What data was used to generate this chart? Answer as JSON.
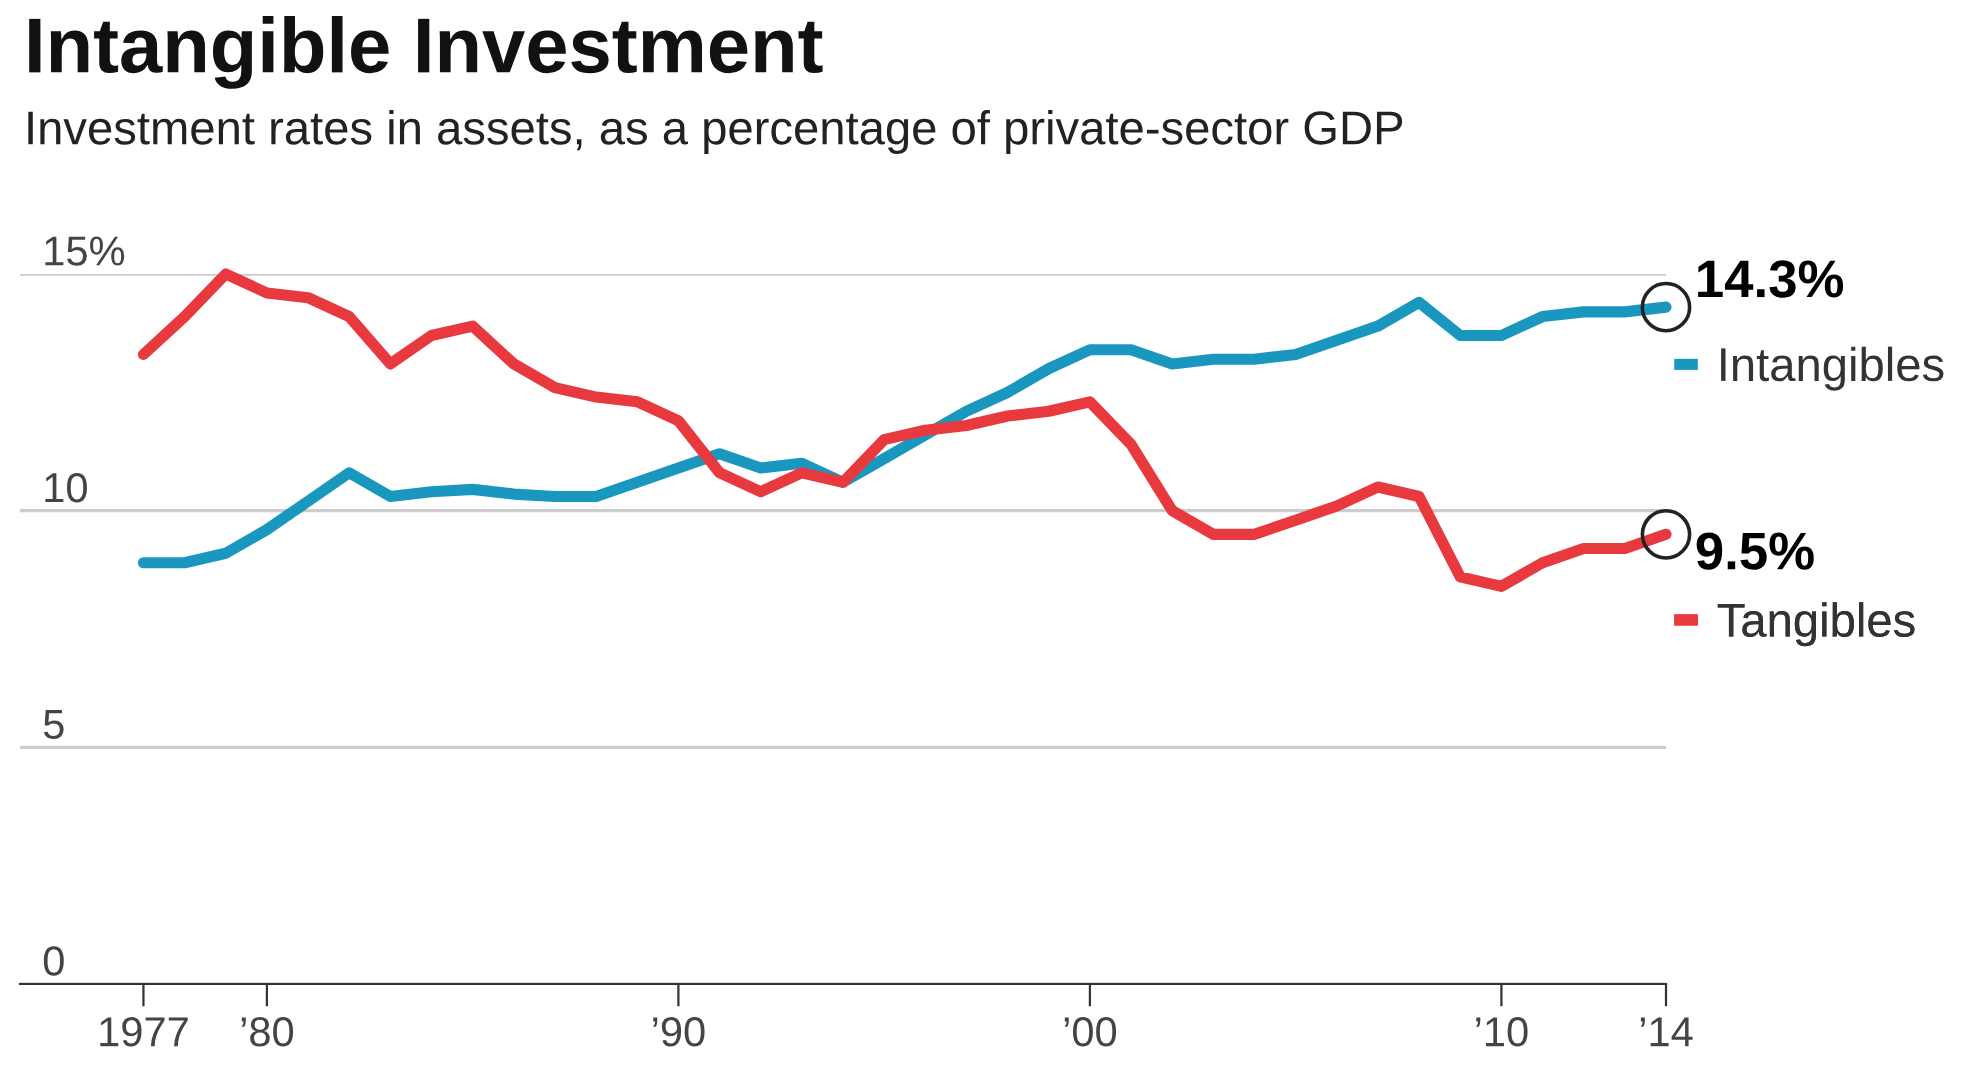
{
  "chart_data": {
    "type": "line",
    "title": "Intangible Investment",
    "subtitle": "Investment rates in assets, as a percentage of private-sector GDP",
    "x": [
      1977,
      1978,
      1979,
      1980,
      1981,
      1982,
      1983,
      1984,
      1985,
      1986,
      1987,
      1988,
      1989,
      1990,
      1991,
      1992,
      1993,
      1994,
      1995,
      1996,
      1997,
      1998,
      1999,
      2000,
      2001,
      2002,
      2003,
      2004,
      2005,
      2006,
      2007,
      2008,
      2009,
      2010,
      2011,
      2012,
      2013,
      2014
    ],
    "series": [
      {
        "name": "Intangibles",
        "color": "#1a97bf",
        "values": [
          8.9,
          8.9,
          9.1,
          9.6,
          10.2,
          10.8,
          10.3,
          10.4,
          10.45,
          10.35,
          10.3,
          10.3,
          10.6,
          10.9,
          11.2,
          10.9,
          11.0,
          10.6,
          11.1,
          11.6,
          12.1,
          12.5,
          13.0,
          13.4,
          13.4,
          13.1,
          13.2,
          13.2,
          13.3,
          13.6,
          13.9,
          14.4,
          13.7,
          13.7,
          14.1,
          14.2,
          14.2,
          14.3
        ]
      },
      {
        "name": "Tangibles",
        "color": "#e8393f",
        "values": [
          13.3,
          14.1,
          15.0,
          14.6,
          14.5,
          14.1,
          13.1,
          13.7,
          13.9,
          13.1,
          12.6,
          12.4,
          12.3,
          11.9,
          10.8,
          10.4,
          10.8,
          10.6,
          11.5,
          11.7,
          11.8,
          12.0,
          12.1,
          12.3,
          11.4,
          10.0,
          9.5,
          9.5,
          9.8,
          10.1,
          10.5,
          10.3,
          8.6,
          8.4,
          8.9,
          9.2,
          9.2,
          9.5
        ]
      }
    ],
    "annotations": [
      {
        "text": "14.3%",
        "x": 2014,
        "y": 14.3
      },
      {
        "text": "9.5%",
        "x": 2014,
        "y": 9.5
      }
    ],
    "xlim": [
      1974,
      2014
    ],
    "ylim": [
      0,
      15
    ],
    "xticks": [
      1977,
      {
        "value": 1980,
        "label": "’80"
      },
      {
        "value": 1990,
        "label": "’90"
      },
      {
        "value": 2000,
        "label": "’00"
      },
      {
        "value": 2010,
        "label": "’10"
      },
      {
        "value": 2014,
        "label": "’14"
      }
    ],
    "yticks": [
      0,
      5,
      10,
      {
        "value": 15,
        "label": "15%"
      }
    ],
    "grid": "y",
    "legend": "right"
  }
}
